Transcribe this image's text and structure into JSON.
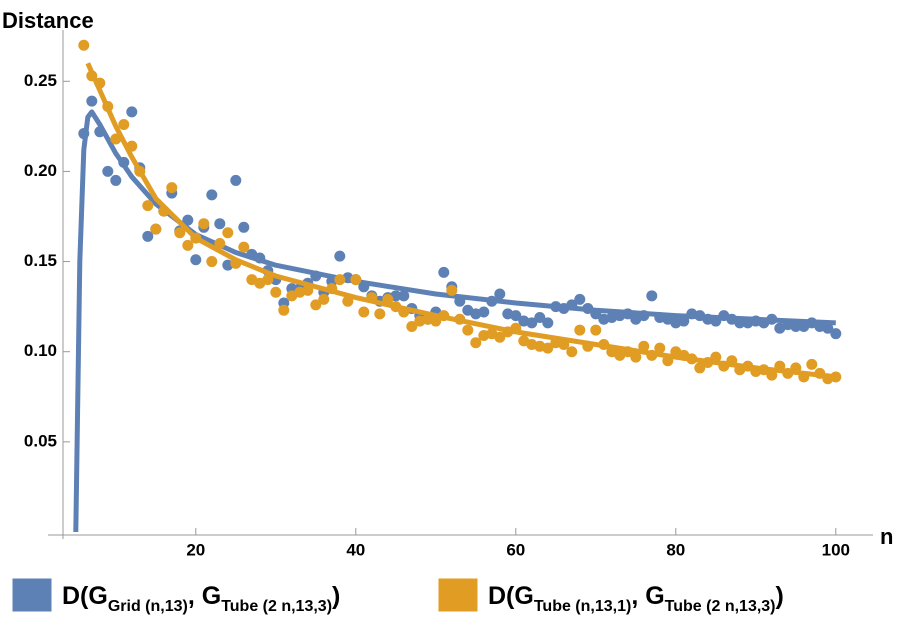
{
  "chart_data": {
    "type": "scatter",
    "y_label": "Distance",
    "x_label": "n",
    "xlim": [
      3.4,
      104.2
    ],
    "ylim": [
      0,
      0.274
    ],
    "xticks": [
      20,
      40,
      60,
      80,
      100
    ],
    "yticks": [
      0.05,
      {
        "value": 0.1,
        "label": "0.10"
      },
      0.15,
      {
        "value": 0.2,
        "label": "0.20"
      },
      0.25
    ],
    "legend": "bottom",
    "x": [
      6,
      7,
      8,
      9,
      10,
      11,
      12,
      13,
      14,
      15,
      16,
      17,
      18,
      19,
      20,
      21,
      22,
      23,
      24,
      25,
      26,
      27,
      28,
      29,
      30,
      31,
      32,
      33,
      34,
      35,
      36,
      37,
      38,
      39,
      40,
      41,
      42,
      43,
      44,
      45,
      46,
      47,
      48,
      49,
      50,
      51,
      52,
      53,
      54,
      55,
      56,
      57,
      58,
      59,
      60,
      61,
      62,
      63,
      64,
      65,
      66,
      67,
      68,
      69,
      70,
      71,
      72,
      73,
      74,
      75,
      76,
      77,
      78,
      79,
      80,
      81,
      82,
      83,
      84,
      85,
      86,
      87,
      88,
      89,
      90,
      91,
      92,
      93,
      94,
      95,
      96,
      97,
      98,
      99,
      100
    ],
    "series": [
      {
        "name": [
          "D(G",
          "Grid (n,13)",
          ", G",
          "Tube (2 n,13,3)",
          ")"
        ],
        "color": "#5e81b5",
        "values": [
          0.221,
          0.239,
          0.222,
          0.2,
          0.195,
          0.205,
          0.233,
          0.202,
          0.164,
          0.168,
          0.178,
          0.188,
          0.167,
          0.173,
          0.151,
          0.169,
          0.187,
          0.171,
          0.148,
          0.195,
          0.169,
          0.154,
          0.152,
          0.145,
          0.14,
          0.127,
          0.135,
          0.135,
          0.138,
          0.142,
          0.133,
          0.139,
          0.153,
          0.141,
          0.14,
          0.136,
          0.131,
          0.128,
          0.13,
          0.131,
          0.131,
          0.124,
          0.12,
          0.118,
          0.122,
          0.144,
          0.136,
          0.128,
          0.123,
          0.121,
          0.122,
          0.128,
          0.132,
          0.121,
          0.12,
          0.117,
          0.116,
          0.119,
          0.116,
          0.125,
          0.124,
          0.126,
          0.129,
          0.124,
          0.121,
          0.118,
          0.119,
          0.12,
          0.121,
          0.118,
          0.12,
          0.131,
          0.119,
          0.118,
          0.116,
          0.117,
          0.121,
          0.12,
          0.118,
          0.117,
          0.12,
          0.118,
          0.116,
          0.116,
          0.117,
          0.116,
          0.118,
          0.113,
          0.115,
          0.114,
          0.114,
          0.116,
          0.114,
          0.113,
          0.11
        ],
        "fit": {
          "x": [
            5,
            5.5,
            6,
            6.5,
            7,
            8,
            10,
            12,
            15,
            20,
            25,
            30,
            40,
            50,
            60,
            70,
            80,
            90,
            100
          ],
          "values": [
            0,
            0.15,
            0.212,
            0.23,
            0.233,
            0.226,
            0.21,
            0.197,
            0.182,
            0.165,
            0.155,
            0.148,
            0.139,
            0.132,
            0.127,
            0.123,
            0.12,
            0.118,
            0.116
          ]
        }
      },
      {
        "name": [
          "D(G",
          "Tube (n,13,1)",
          ", G",
          "Tube (2 n,13,3)",
          ")"
        ],
        "color": "#e19c24",
        "values": [
          0.27,
          0.253,
          0.249,
          0.236,
          0.218,
          0.226,
          0.214,
          0.2,
          0.181,
          0.168,
          0.178,
          0.191,
          0.166,
          0.159,
          0.163,
          0.171,
          0.15,
          0.16,
          0.166,
          0.149,
          0.158,
          0.14,
          0.138,
          0.14,
          0.133,
          0.123,
          0.131,
          0.133,
          0.134,
          0.126,
          0.129,
          0.135,
          0.14,
          0.128,
          0.14,
          0.122,
          0.13,
          0.121,
          0.129,
          0.125,
          0.122,
          0.114,
          0.117,
          0.118,
          0.117,
          0.12,
          0.134,
          0.118,
          0.112,
          0.105,
          0.109,
          0.11,
          0.108,
          0.111,
          0.113,
          0.106,
          0.104,
          0.103,
          0.102,
          0.105,
          0.104,
          0.1,
          0.112,
          0.103,
          0.112,
          0.104,
          0.1,
          0.098,
          0.1,
          0.097,
          0.103,
          0.098,
          0.102,
          0.095,
          0.1,
          0.098,
          0.096,
          0.091,
          0.094,
          0.097,
          0.092,
          0.095,
          0.09,
          0.092,
          0.089,
          0.09,
          0.087,
          0.092,
          0.088,
          0.091,
          0.086,
          0.093,
          0.088,
          0.085,
          0.086
        ],
        "fit": {
          "x": [
            6.5,
            8,
            10,
            12,
            15,
            20,
            25,
            30,
            40,
            50,
            60,
            70,
            80,
            90,
            100
          ],
          "values": [
            0.26,
            0.245,
            0.225,
            0.208,
            0.185,
            0.163,
            0.151,
            0.142,
            0.13,
            0.12,
            0.111,
            0.104,
            0.097,
            0.091,
            0.086
          ]
        }
      }
    ]
  }
}
